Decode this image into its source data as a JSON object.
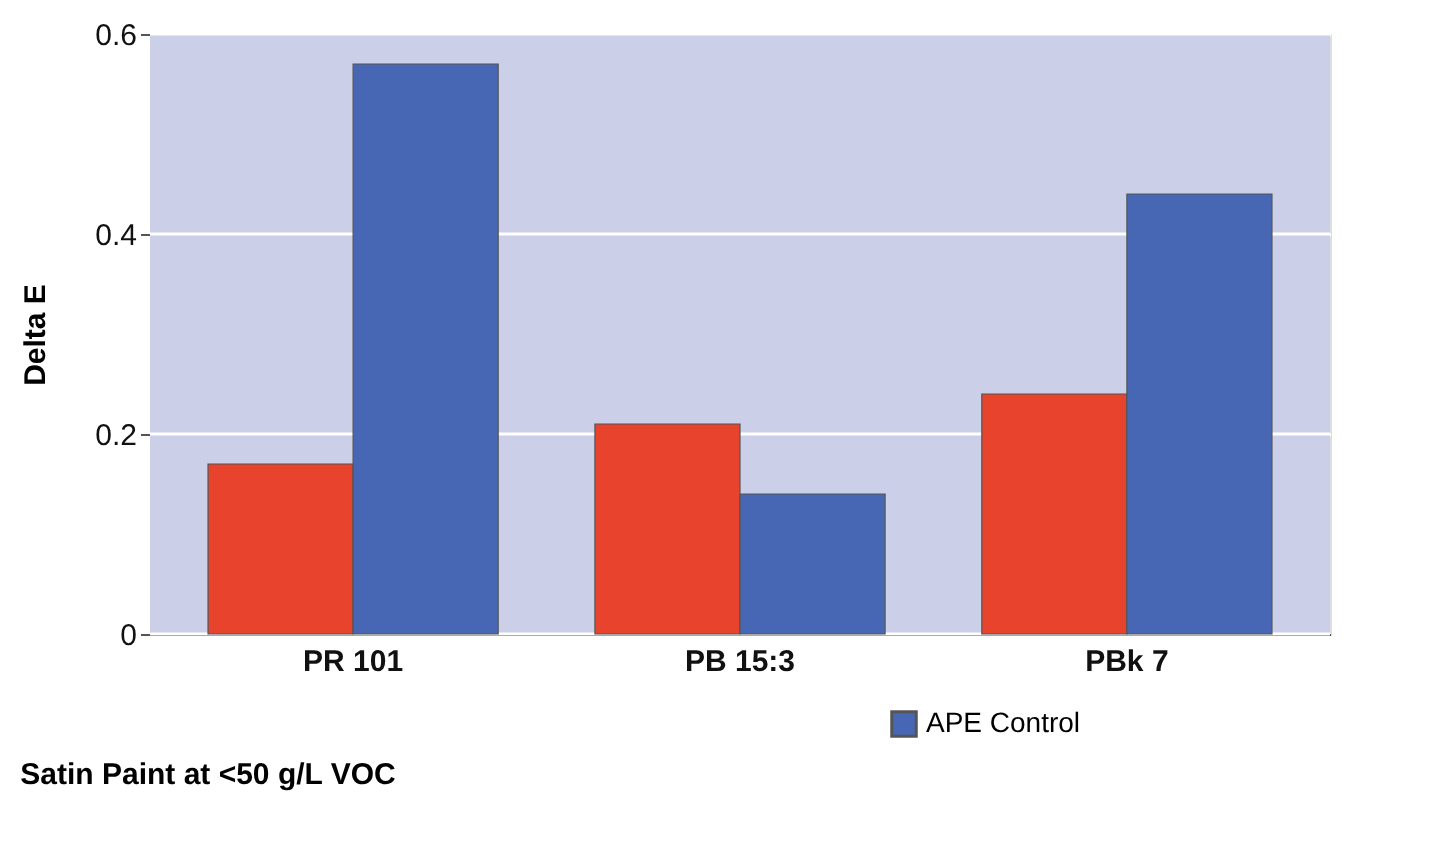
{
  "chart_data": {
    "type": "bar",
    "ylabel": "Delta E",
    "categories": [
      "PR 101",
      "PB 15:3",
      "PBk 7"
    ],
    "series": [
      {
        "color": "#e8432c",
        "values": [
          0.17,
          0.21,
          0.24
        ]
      },
      {
        "name": "APE Control",
        "color": "#4767b4",
        "values": [
          0.57,
          0.14,
          0.44
        ]
      }
    ],
    "ylim": [
      0,
      0.6
    ],
    "yticks": [
      0,
      0.2,
      0.4,
      0.6
    ],
    "grid": "y",
    "legend": "bottom right",
    "annotations": [
      "Satin Paint at <50 g/L VOC"
    ]
  }
}
